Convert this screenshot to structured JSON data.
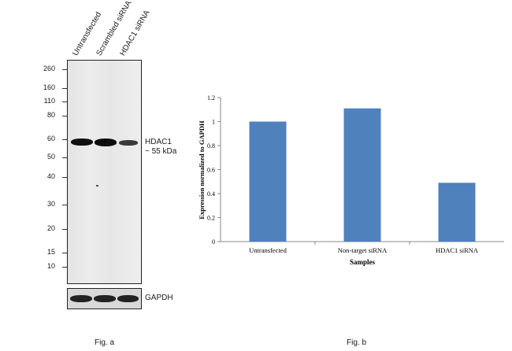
{
  "blot": {
    "lanes": [
      "Untransfected",
      "Scrambled siRNA",
      "HDAC1 siRNA"
    ],
    "markers": [
      "260",
      "160",
      "110",
      "80",
      "60",
      "50",
      "40",
      "30",
      "20",
      "15",
      "10"
    ],
    "target_label": "HDAC1",
    "target_size": "~ 55 kDa",
    "loading_control": "GAPDH",
    "band_intensity": [
      1.0,
      1.0,
      0.55
    ]
  },
  "captions": {
    "fig_a": "Fig. a",
    "fig_b": "Fig. b"
  },
  "chart_data": {
    "type": "bar",
    "categories": [
      "Untransfected",
      "Non-target siRNA",
      "HDAC1 siRNA"
    ],
    "values": [
      1.0,
      1.11,
      0.49
    ],
    "title": "",
    "xlabel": "Samples",
    "ylabel": "Expression normalized to GAPDH",
    "ylim": [
      0,
      1.2
    ],
    "yticks": [
      "0",
      "0.2",
      "0.4",
      "0.6",
      "0.8",
      "1",
      "1.2"
    ],
    "bar_color": "#4f81bd",
    "grid": false
  }
}
